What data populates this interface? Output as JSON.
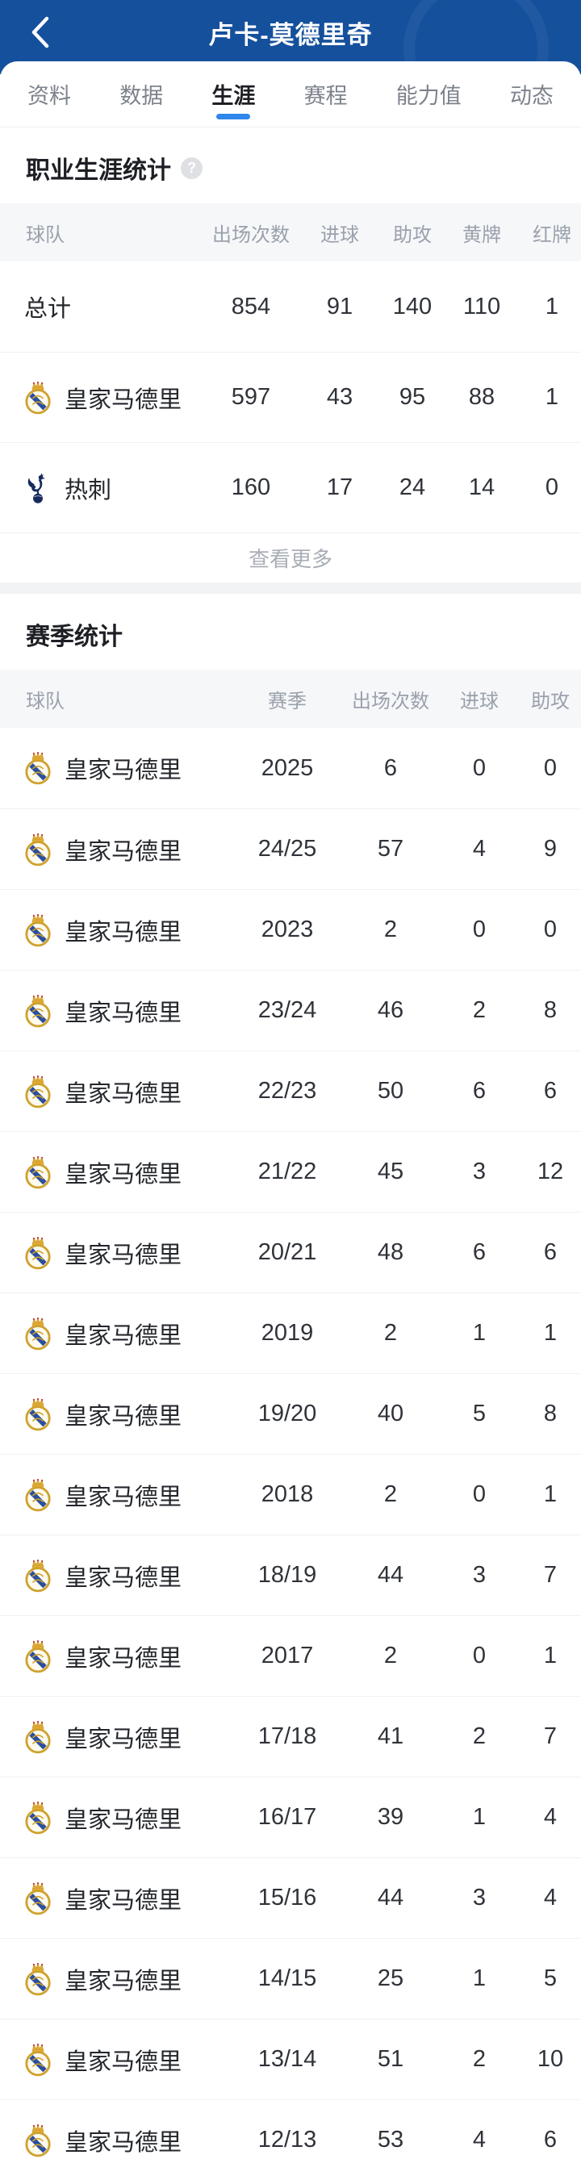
{
  "header": {
    "title": "卢卡-莫德里奇"
  },
  "tabs": [
    {
      "key": "profile",
      "label": "资料",
      "active": false
    },
    {
      "key": "data",
      "label": "数据",
      "active": false
    },
    {
      "key": "career",
      "label": "生涯",
      "active": true
    },
    {
      "key": "schedule",
      "label": "赛程",
      "active": false
    },
    {
      "key": "ability",
      "label": "能力值",
      "active": false
    },
    {
      "key": "news",
      "label": "动态",
      "active": false
    }
  ],
  "career": {
    "title": "职业生涯统计",
    "help_icon": "question-mark",
    "columns": [
      "球队",
      "出场次数",
      "进球",
      "助攻",
      "黄牌",
      "红牌"
    ],
    "rows": [
      {
        "team": "总计",
        "icon": null,
        "values": [
          "854",
          "91",
          "140",
          "110",
          "1"
        ]
      },
      {
        "team": "皇家马德里",
        "icon": "real-madrid",
        "values": [
          "597",
          "43",
          "95",
          "88",
          "1"
        ]
      },
      {
        "team": "热刺",
        "icon": "tottenham",
        "values": [
          "160",
          "17",
          "24",
          "14",
          "0"
        ]
      }
    ],
    "view_more_label": "查看更多"
  },
  "season": {
    "title": "赛季统计",
    "columns": [
      "球队",
      "赛季",
      "出场次数",
      "进球",
      "助攻"
    ],
    "rows": [
      {
        "team": "皇家马德里",
        "icon": "real-madrid",
        "season": "2025",
        "values": [
          "6",
          "0",
          "0"
        ]
      },
      {
        "team": "皇家马德里",
        "icon": "real-madrid",
        "season": "24/25",
        "values": [
          "57",
          "4",
          "9"
        ]
      },
      {
        "team": "皇家马德里",
        "icon": "real-madrid",
        "season": "2023",
        "values": [
          "2",
          "0",
          "0"
        ]
      },
      {
        "team": "皇家马德里",
        "icon": "real-madrid",
        "season": "23/24",
        "values": [
          "46",
          "2",
          "8"
        ]
      },
      {
        "team": "皇家马德里",
        "icon": "real-madrid",
        "season": "22/23",
        "values": [
          "50",
          "6",
          "6"
        ]
      },
      {
        "team": "皇家马德里",
        "icon": "real-madrid",
        "season": "21/22",
        "values": [
          "45",
          "3",
          "12"
        ]
      },
      {
        "team": "皇家马德里",
        "icon": "real-madrid",
        "season": "20/21",
        "values": [
          "48",
          "6",
          "6"
        ]
      },
      {
        "team": "皇家马德里",
        "icon": "real-madrid",
        "season": "2019",
        "values": [
          "2",
          "1",
          "1"
        ]
      },
      {
        "team": "皇家马德里",
        "icon": "real-madrid",
        "season": "19/20",
        "values": [
          "40",
          "5",
          "8"
        ]
      },
      {
        "team": "皇家马德里",
        "icon": "real-madrid",
        "season": "2018",
        "values": [
          "2",
          "0",
          "1"
        ]
      },
      {
        "team": "皇家马德里",
        "icon": "real-madrid",
        "season": "18/19",
        "values": [
          "44",
          "3",
          "7"
        ]
      },
      {
        "team": "皇家马德里",
        "icon": "real-madrid",
        "season": "2017",
        "values": [
          "2",
          "0",
          "1"
        ]
      },
      {
        "team": "皇家马德里",
        "icon": "real-madrid",
        "season": "17/18",
        "values": [
          "41",
          "2",
          "7"
        ]
      },
      {
        "team": "皇家马德里",
        "icon": "real-madrid",
        "season": "16/17",
        "values": [
          "39",
          "1",
          "4"
        ]
      },
      {
        "team": "皇家马德里",
        "icon": "real-madrid",
        "season": "15/16",
        "values": [
          "44",
          "3",
          "4"
        ]
      },
      {
        "team": "皇家马德里",
        "icon": "real-madrid",
        "season": "14/15",
        "values": [
          "25",
          "1",
          "5"
        ]
      },
      {
        "team": "皇家马德里",
        "icon": "real-madrid",
        "season": "13/14",
        "values": [
          "51",
          "2",
          "10"
        ]
      },
      {
        "team": "皇家马德里",
        "icon": "real-madrid",
        "season": "12/13",
        "values": [
          "53",
          "4",
          "6"
        ]
      }
    ]
  },
  "colors": {
    "header_bg": "#15509c",
    "accent": "#2f87ec",
    "tab_inactive": "#7d828c",
    "table_header_bg": "#f6f7f9",
    "table_header_text": "#9aa1ac",
    "divider": "#f0f1f3",
    "text_primary": "#23262b",
    "view_more_text": "#a9aeb6"
  }
}
